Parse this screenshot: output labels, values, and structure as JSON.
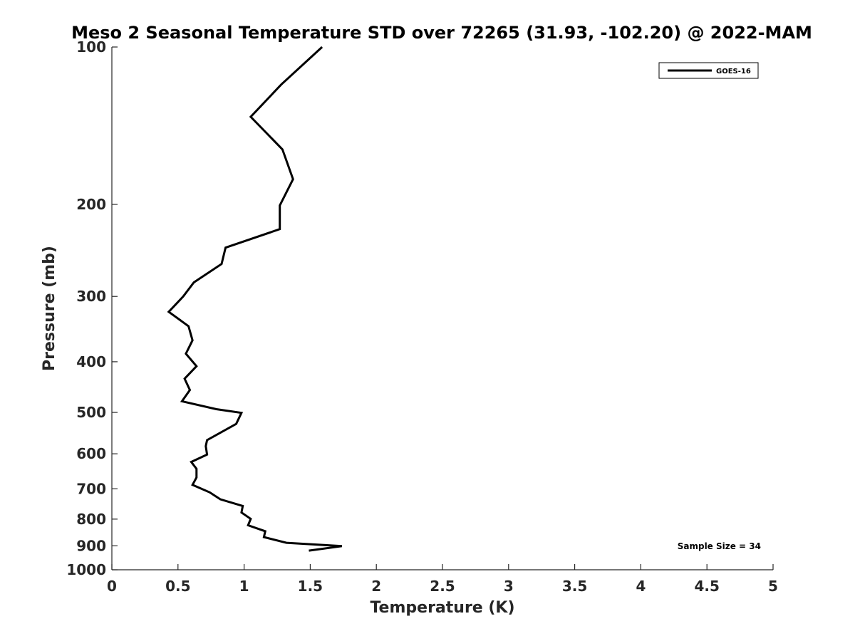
{
  "chart_data": {
    "type": "line",
    "title": "Meso 2 Seasonal Temperature STD over 72265 (31.93, -102.20) @ 2022-MAM",
    "xlabel": "Temperature (K)",
    "ylabel": "Pressure (mb)",
    "xlim": [
      0,
      5
    ],
    "ylim": [
      100,
      1000
    ],
    "y_scale": "log",
    "y_reversed": true,
    "grid": false,
    "legend_placement": "top-right",
    "x_ticks": [
      "0",
      "0.5",
      "1",
      "1.5",
      "2",
      "2.5",
      "3",
      "3.5",
      "4",
      "4.5",
      "5"
    ],
    "y_ticks": [
      "100",
      "200",
      "300",
      "400",
      "500",
      "600",
      "700",
      "800",
      "900",
      "1000"
    ],
    "annotation": "Sample Size = 34",
    "series": [
      {
        "name": "GOES-16",
        "color": "#000000",
        "x": [
          1.59,
          1.28,
          1.05,
          1.29,
          1.37,
          1.27,
          1.27,
          0.86,
          0.83,
          0.62,
          0.54,
          0.43,
          0.58,
          0.61,
          0.56,
          0.64,
          0.55,
          0.59,
          0.53,
          0.79,
          0.98,
          0.94,
          0.72,
          0.71,
          0.72,
          0.6,
          0.64,
          0.64,
          0.61,
          0.74,
          0.82,
          0.99,
          0.98,
          1.05,
          1.03,
          1.16,
          1.15,
          1.32,
          1.74,
          1.49
        ],
        "y": [
          100,
          118,
          136,
          157,
          179,
          201,
          223,
          242,
          260,
          282,
          300,
          321,
          342,
          364,
          386,
          408,
          431,
          453,
          476,
          493,
          501,
          526,
          565,
          580,
          602,
          622,
          641,
          666,
          688,
          711,
          733,
          755,
          777,
          799,
          822,
          844,
          866,
          888,
          901,
          919
        ]
      }
    ]
  }
}
